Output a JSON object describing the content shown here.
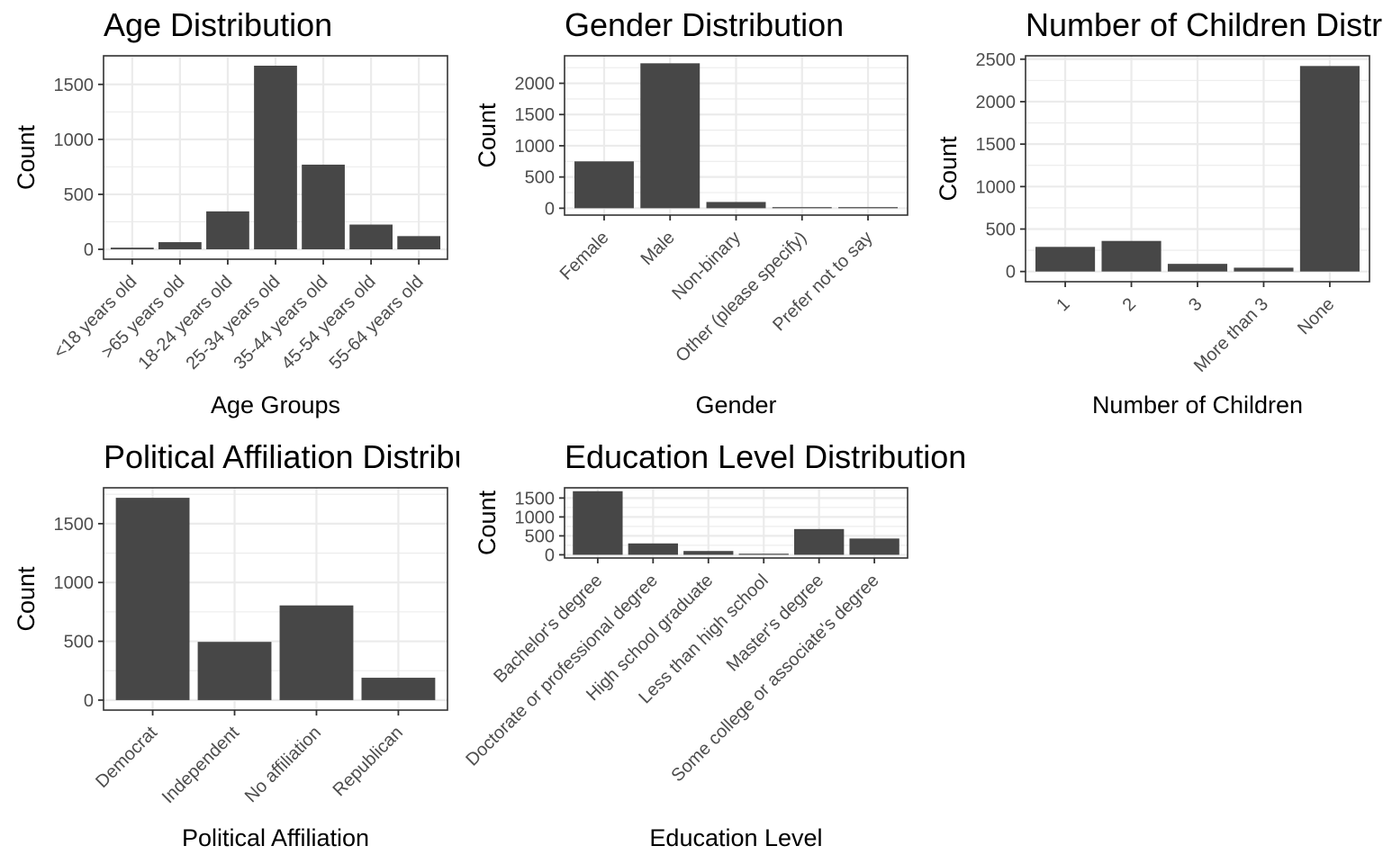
{
  "colors": {
    "bar": "#474747",
    "grid": "#ebebeb",
    "border": "#333333",
    "tick_text": "#4d4d4d"
  },
  "chart_data": [
    {
      "type": "bar",
      "title": "Age Distribution",
      "xlabel": "Age Groups",
      "ylabel": "Count",
      "categories": [
        "<18 years old",
        ">65 years old",
        "18-24 years old",
        "25-34 years old",
        "35-44 years old",
        "45-54 years old",
        "55-64 years old"
      ],
      "values": [
        15,
        65,
        345,
        1670,
        770,
        225,
        120
      ],
      "ylim": [
        -90,
        1760
      ],
      "yticks": [
        0,
        500,
        1000,
        1500
      ],
      "grid": true
    },
    {
      "type": "bar",
      "title": "Gender Distribution",
      "xlabel": "Gender",
      "ylabel": "Count",
      "categories": [
        "Female",
        "Male",
        "Non-binary",
        "Other (please specify)",
        "Prefer not to say"
      ],
      "values": [
        750,
        2320,
        100,
        15,
        10
      ],
      "ylim": [
        -110,
        2440
      ],
      "yticks": [
        0,
        500,
        1000,
        1500,
        2000
      ],
      "grid": true
    },
    {
      "type": "bar",
      "title": "Number of Children Distribution",
      "xlabel": "Number of Children",
      "ylabel": "Count",
      "categories": [
        "1",
        "2",
        "3",
        "More than 3",
        "None"
      ],
      "values": [
        290,
        360,
        90,
        45,
        2420
      ],
      "ylim": [
        -120,
        2540
      ],
      "yticks": [
        0,
        500,
        1000,
        1500,
        2000,
        2500
      ],
      "grid": true
    },
    {
      "type": "bar",
      "title": "Political Affiliation Distribution",
      "xlabel": "Political Affiliation",
      "ylabel": "Count",
      "categories": [
        "Democrat",
        "Independent",
        "No affiliation",
        "Republican"
      ],
      "values": [
        1720,
        495,
        805,
        190
      ],
      "ylim": [
        -85,
        1805
      ],
      "yticks": [
        0,
        500,
        1000,
        1500
      ],
      "grid": true
    },
    {
      "type": "bar",
      "title": "Education Level Distribution",
      "xlabel": "Education Level",
      "ylabel": "Count",
      "categories": [
        "Bachelor's degree",
        "Doctorate or professional degree",
        "High school graduate",
        "Less than high school",
        "Master's degree",
        "Some college or associate's degree"
      ],
      "values": [
        1680,
        300,
        100,
        20,
        680,
        430
      ],
      "ylim": [
        -85,
        1770
      ],
      "yticks": [
        0,
        500,
        1000,
        1500
      ],
      "grid": true
    }
  ]
}
